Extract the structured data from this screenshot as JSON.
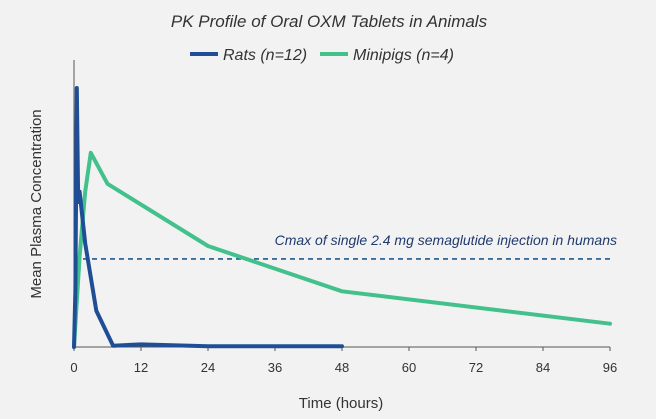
{
  "chart_data": {
    "type": "line",
    "title": "PK Profile of Oral OXM Tablets in Animals",
    "xlabel": "Time (hours)",
    "ylabel": "Mean Plasma Concentration",
    "xlim": [
      0,
      96
    ],
    "ylim": [
      0,
      100
    ],
    "x_ticks": [
      0,
      12,
      24,
      36,
      48,
      60,
      72,
      84,
      96
    ],
    "y_ticks": [],
    "grid": false,
    "legend_position": "top-center",
    "series": [
      {
        "name": "Rats (n=12)",
        "color": "#1f4e96",
        "x": [
          0,
          0.25,
          0.5,
          0.75,
          1,
          2,
          4,
          7,
          12,
          24,
          48
        ],
        "y": [
          0,
          22,
          100,
          56,
          60,
          40,
          14,
          0.5,
          1,
          0.3,
          0.3
        ]
      },
      {
        "name": "Minipigs (n=4)",
        "color": "#43c18c",
        "x": [
          0,
          1,
          2,
          3,
          6,
          24,
          48,
          96
        ],
        "y": [
          0,
          35,
          60,
          75,
          63,
          39,
          21.5,
          9
        ]
      }
    ],
    "reference_line": {
      "y": 34,
      "color": "#1f5a8a",
      "style": "dashed",
      "label": "Cmax of single 2.4 mg semaglutide injection in humans"
    }
  }
}
